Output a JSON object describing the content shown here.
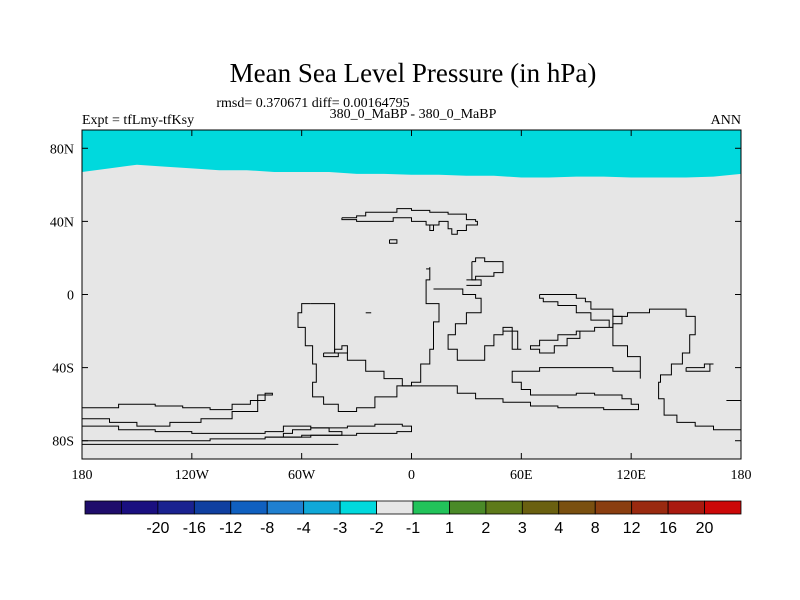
{
  "chart_data": {
    "type": "heatmap",
    "title": "Mean Sea Level Pressure (in hPa)",
    "stats_text": "rmsd= 0.370671 diff= 0.00164795",
    "left_label": "Expt = tfLmy-tfKsy",
    "center_label": "380_0_MaBP - 380_0_MaBP",
    "right_label": "ANN",
    "x_range": [
      -180,
      180
    ],
    "y_range": [
      -90,
      90
    ],
    "x_ticks": [
      {
        "value": -180,
        "label": "180"
      },
      {
        "value": -120,
        "label": "120W"
      },
      {
        "value": -60,
        "label": "60W"
      },
      {
        "value": 0,
        "label": "0"
      },
      {
        "value": 60,
        "label": "60E"
      },
      {
        "value": 120,
        "label": "120E"
      },
      {
        "value": 180,
        "label": "180"
      }
    ],
    "y_ticks": [
      {
        "value": 80,
        "label": "80N"
      },
      {
        "value": 40,
        "label": "40N"
      },
      {
        "value": 0,
        "label": "0"
      },
      {
        "value": -40,
        "label": "40S"
      },
      {
        "value": -80,
        "label": "80S"
      }
    ],
    "fields": [
      {
        "name": "background",
        "range": "-1 to 1",
        "color": "#e6e6e6"
      },
      {
        "name": "high-latitude band",
        "range": "-2 to -1",
        "color": "#00d9dd",
        "boundary": [
          [
            -180,
            67
          ],
          [
            -165,
            69
          ],
          [
            -150,
            71
          ],
          [
            -135,
            70
          ],
          [
            -120,
            69
          ],
          [
            -105,
            68
          ],
          [
            -90,
            68
          ],
          [
            -75,
            67
          ],
          [
            -60,
            67
          ],
          [
            -45,
            67
          ],
          [
            -30,
            66
          ],
          [
            -15,
            66
          ],
          [
            0,
            65.5
          ],
          [
            15,
            65.5
          ],
          [
            30,
            65
          ],
          [
            45,
            65
          ],
          [
            60,
            64
          ],
          [
            75,
            64
          ],
          [
            90,
            64.5
          ],
          [
            105,
            64.5
          ],
          [
            120,
            64
          ],
          [
            135,
            64
          ],
          [
            150,
            64
          ],
          [
            165,
            64.5
          ],
          [
            180,
            66
          ]
        ]
      }
    ],
    "colorbar": {
      "colors": [
        "#1f0d6b",
        "#1a0f80",
        "#1a2290",
        "#0f3fa0",
        "#1060c0",
        "#2080d0",
        "#10a8d8",
        "#00d9dd",
        "#e6e6e6",
        "#22c35a",
        "#4a8a28",
        "#5e7a1a",
        "#6a6010",
        "#7a5010",
        "#8a3e10",
        "#9a2a10",
        "#aa1a10",
        "#cc0808"
      ],
      "labels": [
        "-20",
        "-16",
        "-12",
        "-8",
        "-4",
        "-3",
        "-2",
        "-1",
        "1",
        "2",
        "3",
        "4",
        "8",
        "12",
        "16",
        "20"
      ]
    },
    "coastlines": [
      [
        [
          -180,
          -62
        ],
        [
          -160,
          -60
        ],
        [
          -140,
          -61
        ],
        [
          -125,
          -62
        ],
        [
          -110,
          -63
        ],
        [
          -98,
          -60
        ],
        [
          -88,
          -58
        ],
        [
          -80,
          -54
        ],
        [
          -76,
          -55
        ],
        [
          -84,
          -64
        ],
        [
          -98,
          -68
        ],
        [
          -115,
          -70
        ],
        [
          -132,
          -72
        ],
        [
          -150,
          -70
        ],
        [
          -165,
          -68
        ],
        [
          -180,
          -68
        ]
      ],
      [
        [
          -180,
          -72
        ],
        [
          -160,
          -74
        ],
        [
          -140,
          -75
        ],
        [
          -120,
          -76
        ],
        [
          -100,
          -76
        ],
        [
          -80,
          -75
        ],
        [
          -70,
          -72
        ],
        [
          -55,
          -73
        ],
        [
          -45,
          -75
        ],
        [
          -38,
          -77
        ],
        [
          -55,
          -78
        ],
        [
          -80,
          -79
        ],
        [
          -110,
          -80
        ],
        [
          -140,
          -80
        ],
        [
          -180,
          -80
        ]
      ],
      [
        [
          -180,
          -82
        ],
        [
          -40,
          -82
        ]
      ],
      [
        [
          -80,
          -78
        ],
        [
          -70,
          -76
        ],
        [
          -65,
          -74
        ],
        [
          -55,
          -73
        ],
        [
          -35,
          -72
        ],
        [
          -20,
          -71
        ],
        [
          -5,
          -72
        ],
        [
          0,
          -75
        ],
        [
          -8,
          -76
        ],
        [
          -30,
          -77
        ],
        [
          -60,
          -78
        ],
        [
          -80,
          -78
        ]
      ],
      [
        [
          -48,
          -32
        ],
        [
          -42,
          -30
        ],
        [
          -38,
          -28
        ],
        [
          -35,
          -32
        ],
        [
          -40,
          -34
        ],
        [
          -48,
          -34
        ],
        [
          -48,
          -32
        ]
      ],
      [
        [
          -55,
          -5
        ],
        [
          -42,
          -5
        ],
        [
          -42,
          -32
        ],
        [
          -35,
          -36
        ],
        [
          -25,
          -42
        ],
        [
          -15,
          -46
        ],
        [
          -5,
          -50
        ],
        [
          10,
          -50
        ],
        [
          25,
          -54
        ],
        [
          35,
          -57
        ],
        [
          50,
          -59
        ],
        [
          65,
          -61
        ],
        [
          80,
          -62
        ],
        [
          95,
          -62
        ],
        [
          105,
          -63
        ],
        [
          118,
          -63
        ],
        [
          124,
          -60
        ],
        [
          120,
          -57
        ],
        [
          115,
          -55
        ],
        [
          100,
          -54
        ],
        [
          90,
          -55
        ],
        [
          75,
          -55
        ],
        [
          65,
          -52
        ],
        [
          60,
          -48
        ],
        [
          55,
          -42
        ],
        [
          70,
          -40
        ],
        [
          85,
          -40
        ],
        [
          100,
          -40
        ],
        [
          110,
          -42
        ],
        [
          125,
          -46
        ],
        [
          125,
          -34
        ],
        [
          118,
          -28
        ],
        [
          110,
          -20
        ],
        [
          110,
          -12
        ],
        [
          118,
          -10
        ],
        [
          130,
          -8
        ],
        [
          140,
          -8
        ],
        [
          150,
          -12
        ],
        [
          155,
          -22
        ],
        [
          152,
          -32
        ],
        [
          148,
          -38
        ],
        [
          142,
          -44
        ],
        [
          136,
          -48
        ],
        [
          135,
          -57
        ],
        [
          138,
          -66
        ],
        [
          145,
          -70
        ],
        [
          155,
          -72
        ],
        [
          165,
          -74
        ],
        [
          180,
          -76
        ]
      ],
      [
        [
          -55,
          -5
        ],
        [
          -60,
          -10
        ],
        [
          -62,
          -18
        ],
        [
          -58,
          -28
        ],
        [
          -54,
          -38
        ],
        [
          -52,
          -48
        ],
        [
          -54,
          -56
        ],
        [
          -48,
          -60
        ],
        [
          -40,
          -64
        ],
        [
          -30,
          -62
        ],
        [
          -20,
          -56
        ],
        [
          -8,
          -50
        ],
        [
          0,
          -48
        ],
        [
          5,
          -38
        ],
        [
          10,
          -30
        ],
        [
          12,
          -15
        ],
        [
          15,
          -5
        ],
        [
          8,
          0
        ],
        [
          8,
          8
        ],
        [
          10,
          15
        ]
      ],
      [
        [
          12,
          3
        ],
        [
          20,
          3
        ],
        [
          28,
          0
        ],
        [
          35,
          -2
        ],
        [
          38,
          -10
        ],
        [
          30,
          -16
        ],
        [
          24,
          -22
        ],
        [
          20,
          -30
        ],
        [
          25,
          -36
        ],
        [
          35,
          -36
        ],
        [
          40,
          -28
        ],
        [
          45,
          -22
        ],
        [
          50,
          -18
        ],
        [
          55,
          -20
        ],
        [
          58,
          -26
        ]
      ],
      [
        [
          -25,
          -10
        ],
        [
          -22,
          -10
        ]
      ],
      [
        [
          8,
          14
        ],
        [
          10,
          14
        ]
      ],
      [
        [
          50,
          -20
        ],
        [
          55,
          -30
        ],
        [
          60,
          -30
        ],
        [
          58,
          -26
        ]
      ],
      [
        [
          -38,
          42
        ],
        [
          -30,
          43
        ],
        [
          -25,
          45
        ],
        [
          -15,
          45
        ],
        [
          -8,
          47
        ],
        [
          0,
          46
        ],
        [
          10,
          45
        ],
        [
          20,
          44
        ],
        [
          30,
          41
        ],
        [
          35,
          40
        ],
        [
          36,
          38
        ],
        [
          30,
          35
        ],
        [
          25,
          33
        ],
        [
          22,
          36
        ],
        [
          20,
          40
        ],
        [
          15,
          38
        ],
        [
          10,
          35
        ],
        [
          12,
          38
        ],
        [
          8,
          40
        ],
        [
          0,
          42
        ],
        [
          -10,
          40
        ],
        [
          -20,
          40
        ],
        [
          -30,
          41
        ],
        [
          -38,
          42
        ]
      ],
      [
        [
          -12,
          30
        ],
        [
          -8,
          30
        ],
        [
          -8,
          28
        ],
        [
          -12,
          28
        ],
        [
          -12,
          30
        ]
      ],
      [
        [
          33,
          18
        ],
        [
          35,
          20
        ],
        [
          40,
          18
        ],
        [
          45,
          18
        ],
        [
          50,
          16
        ],
        [
          50,
          12
        ],
        [
          45,
          10
        ],
        [
          40,
          10
        ],
        [
          35,
          8
        ],
        [
          33,
          12
        ],
        [
          33,
          18
        ]
      ],
      [
        [
          30,
          8
        ],
        [
          36,
          8
        ],
        [
          38,
          5
        ],
        [
          30,
          5
        ]
      ],
      [
        [
          70,
          0
        ],
        [
          80,
          0
        ],
        [
          90,
          -2
        ],
        [
          95,
          -4
        ],
        [
          98,
          -8
        ],
        [
          110,
          -12
        ],
        [
          115,
          -16
        ],
        [
          110,
          -18
        ],
        [
          100,
          -20
        ],
        [
          90,
          -22
        ],
        [
          80,
          -25
        ],
        [
          70,
          -28
        ],
        [
          65,
          -30
        ],
        [
          70,
          -32
        ],
        [
          78,
          -28
        ],
        [
          85,
          -24
        ],
        [
          92,
          -20
        ],
        [
          100,
          -18
        ],
        [
          108,
          -14
        ],
        [
          98,
          -10
        ],
        [
          90,
          -6
        ],
        [
          80,
          -4
        ],
        [
          72,
          -2
        ],
        [
          70,
          0
        ]
      ],
      [
        [
          150,
          -40
        ],
        [
          160,
          -38
        ],
        [
          165,
          -38
        ],
        [
          163,
          -42
        ],
        [
          155,
          -42
        ],
        [
          150,
          -40
        ]
      ],
      [
        [
          172,
          -58
        ],
        [
          180,
          -58
        ]
      ]
    ]
  }
}
